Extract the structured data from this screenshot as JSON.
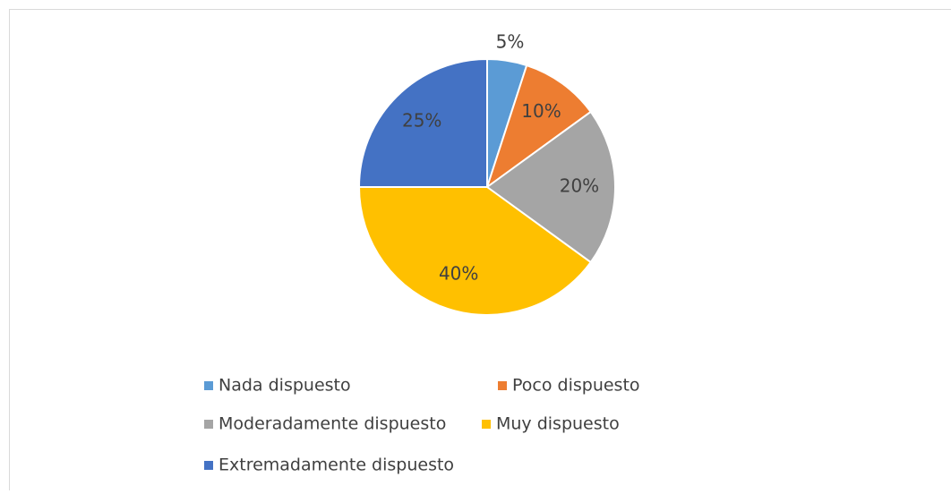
{
  "chart_data": {
    "type": "pie",
    "categories": [
      "Nada dispuesto",
      "Poco dispuesto",
      "Moderadamente dispuesto",
      "Muy dispuesto",
      "Extremadamente dispuesto"
    ],
    "values": [
      5,
      10,
      20,
      40,
      25
    ],
    "value_labels": [
      "5%",
      "10%",
      "20%",
      "40%",
      "25%"
    ],
    "colors": [
      "#5b9bd5",
      "#ed7d31",
      "#a5a5a5",
      "#ffc000",
      "#4472c4"
    ],
    "legend": "bottom"
  }
}
